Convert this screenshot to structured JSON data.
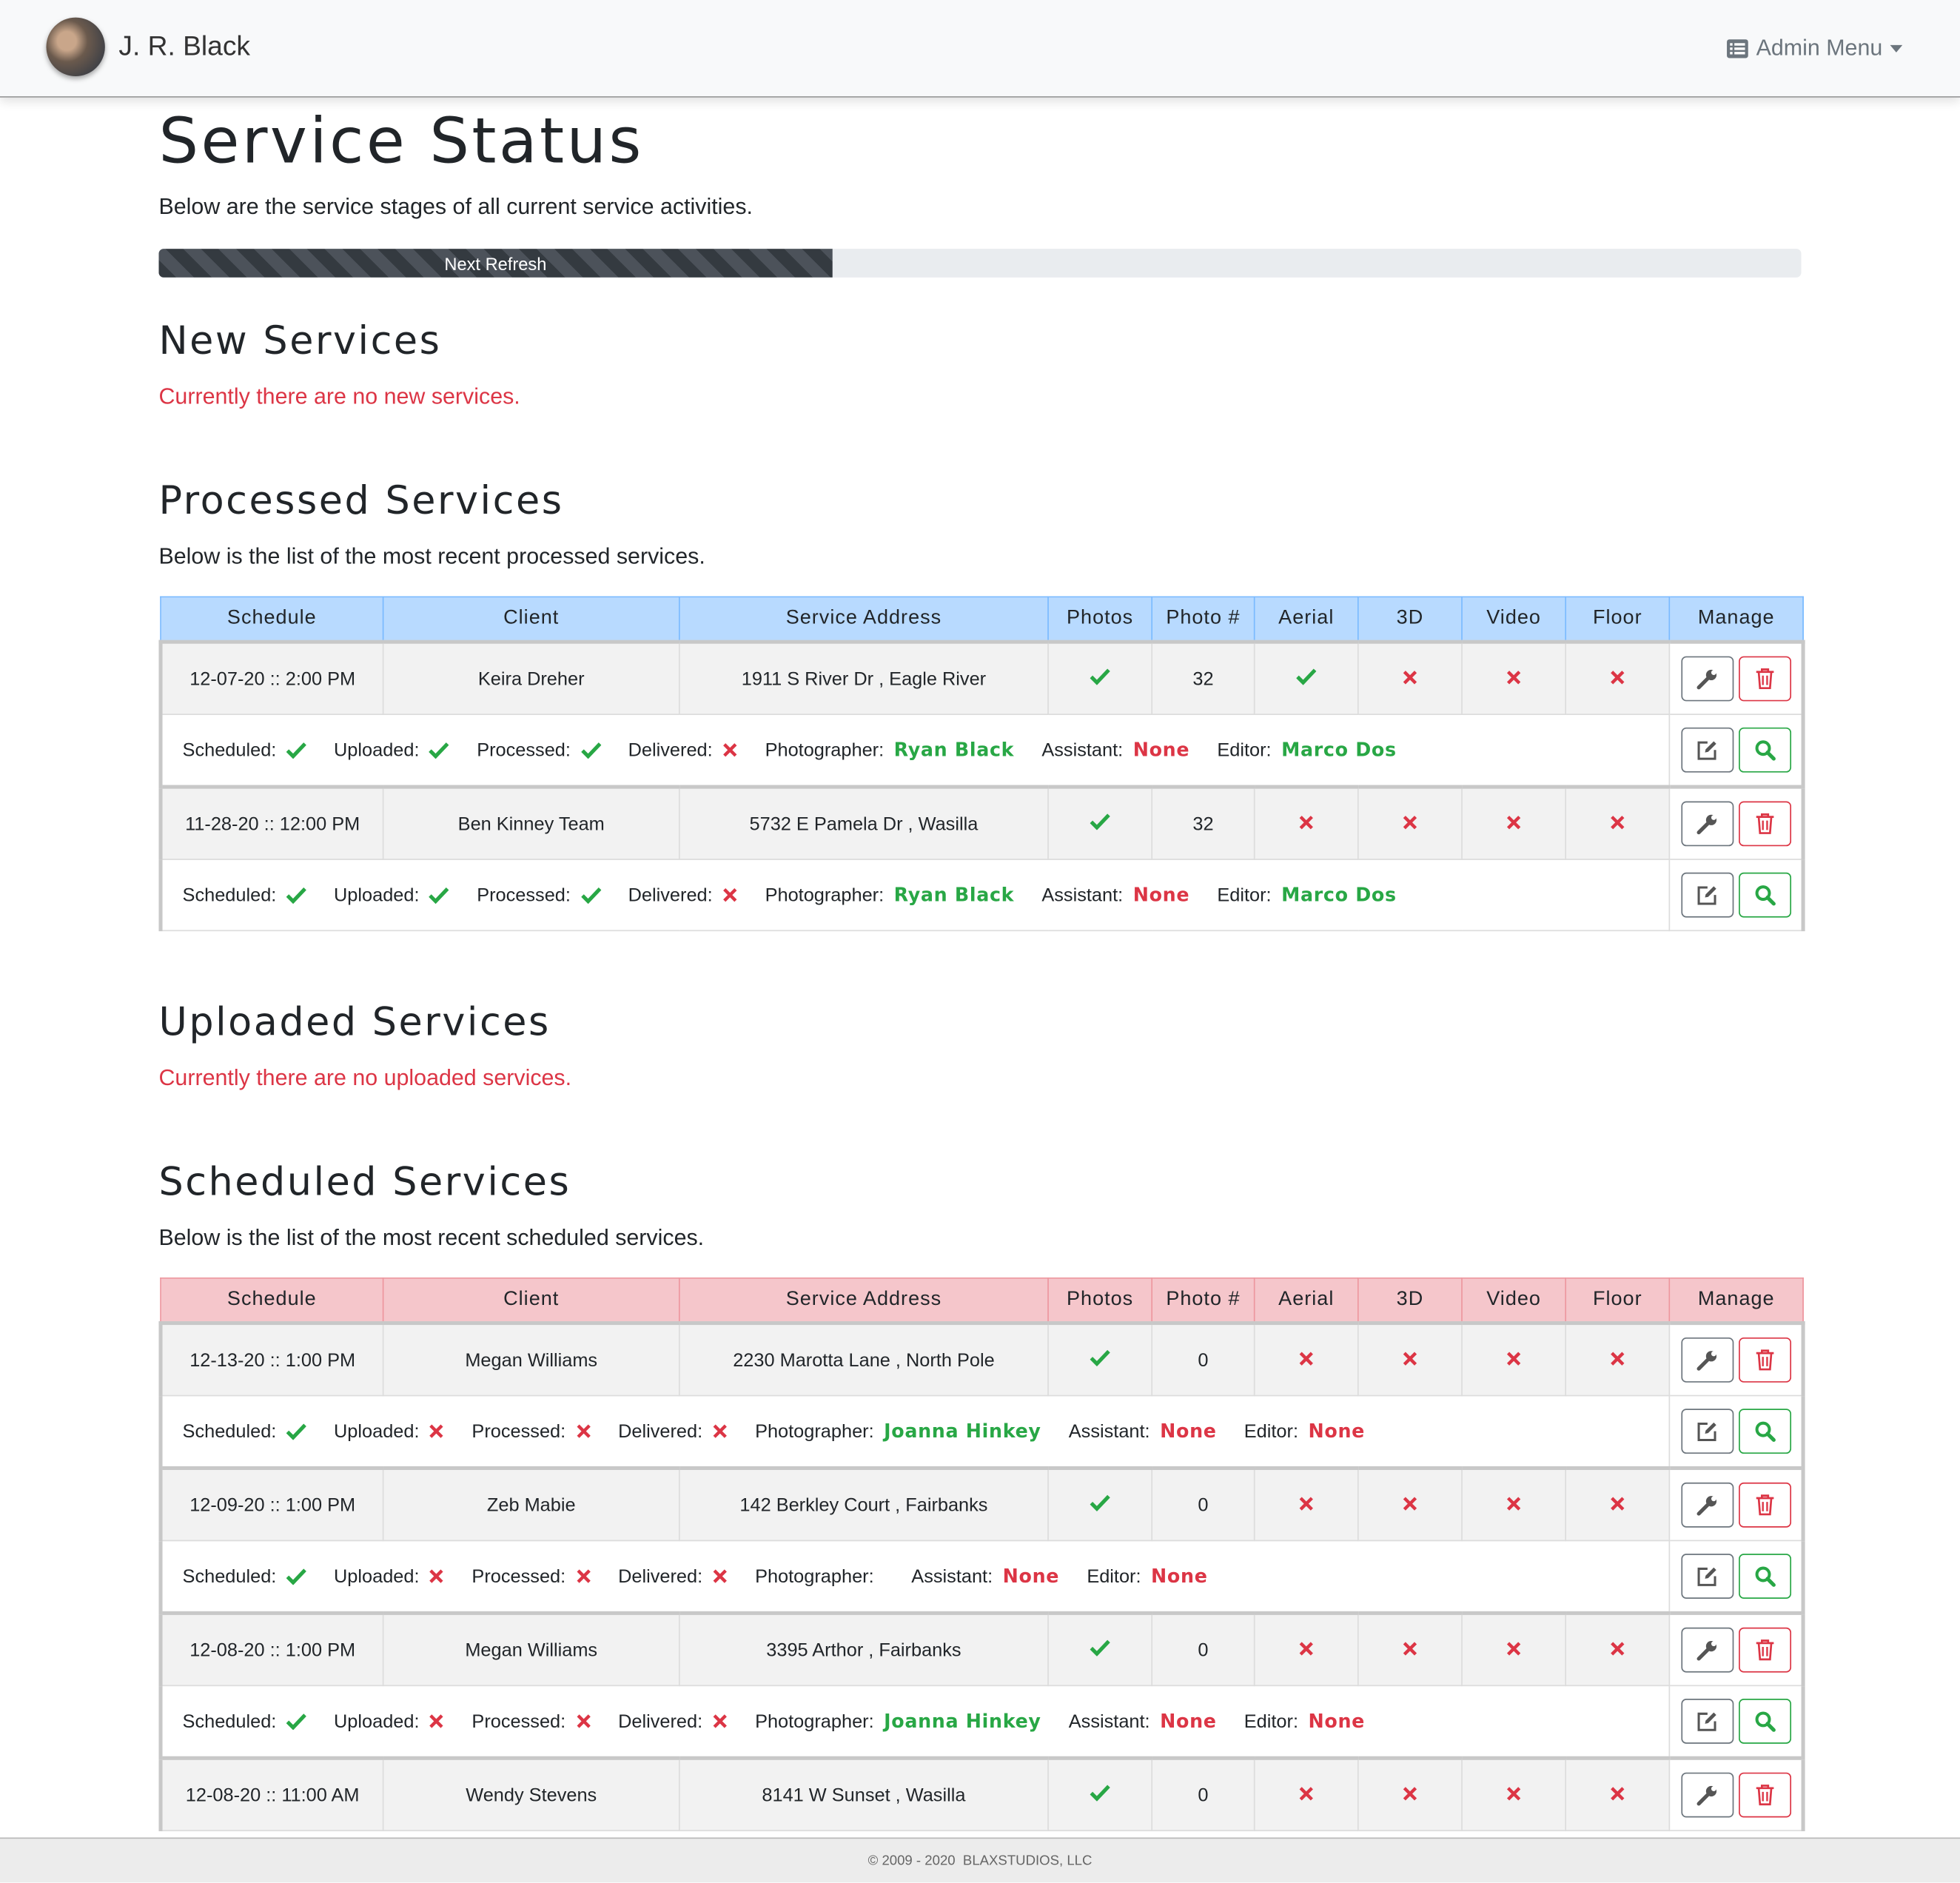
{
  "navbar": {
    "user": "J. R. Black",
    "menu": "Admin Menu"
  },
  "header": {
    "title": "Service Status",
    "subtitle": "Below are the service stages of all current service activities.",
    "refresh_label": "Next Refresh",
    "refresh_progress": 41
  },
  "detail_labels": {
    "scheduled": "Scheduled:",
    "uploaded": "Uploaded:",
    "processed": "Processed:",
    "delivered": "Delivered:",
    "photographer": "Photographer:",
    "assistant": "Assistant:",
    "editor": "Editor:"
  },
  "sections": [
    {
      "title": "New Services",
      "empty_message": "Currently there are no new services."
    },
    {
      "title": "Processed Services",
      "description": "Below is the list of the most recent processed services.",
      "table": {
        "header_color": "#b8daff",
        "border_color": "#7abaff",
        "columns": [
          "Schedule",
          "Client",
          "Service Address",
          "Photos",
          "Photo #",
          "Aerial",
          "3D",
          "Video",
          "Floor",
          "Manage"
        ],
        "rows": [
          {
            "schedule": "12-07-20 :: 2:00 PM",
            "client": "Keira Dreher",
            "address": "1911 S River Dr , Eagle River",
            "photos": true,
            "photo_count": 32,
            "aerial": true,
            "three_d": false,
            "video": false,
            "floor": false,
            "scheduled": true,
            "uploaded": true,
            "processed": true,
            "delivered": false,
            "photographer": {
              "name": "Ryan Black",
              "color": "#28a745"
            },
            "assistant": {
              "name": "None",
              "color": "#dc3545"
            },
            "editor": {
              "name": "Marco Dos",
              "color": "#28a745"
            }
          },
          {
            "schedule": "11-28-20 :: 12:00 PM",
            "client": "Ben Kinney Team",
            "address": "5732 E Pamela Dr , Wasilla",
            "photos": true,
            "photo_count": 32,
            "aerial": false,
            "three_d": false,
            "video": false,
            "floor": false,
            "scheduled": true,
            "uploaded": true,
            "processed": true,
            "delivered": false,
            "photographer": {
              "name": "Ryan Black",
              "color": "#28a745"
            },
            "assistant": {
              "name": "None",
              "color": "#dc3545"
            },
            "editor": {
              "name": "Marco Dos",
              "color": "#28a745"
            }
          }
        ]
      }
    },
    {
      "title": "Uploaded Services",
      "empty_message": "Currently there are no uploaded services."
    },
    {
      "title": "Scheduled Services",
      "description": "Below is the list of the most recent scheduled services.",
      "table": {
        "header_color": "#f5c6cb",
        "border_color": "#ed969e",
        "columns": [
          "Schedule",
          "Client",
          "Service Address",
          "Photos",
          "Photo #",
          "Aerial",
          "3D",
          "Video",
          "Floor",
          "Manage"
        ],
        "rows": [
          {
            "schedule": "12-13-20 :: 1:00 PM",
            "client": "Megan Williams",
            "address": "2230 Marotta Lane , North Pole",
            "photos": true,
            "photo_count": 0,
            "aerial": false,
            "three_d": false,
            "video": false,
            "floor": false,
            "scheduled": true,
            "uploaded": false,
            "processed": false,
            "delivered": false,
            "photographer": {
              "name": "Joanna Hinkey",
              "color": "#28a745"
            },
            "assistant": {
              "name": "None",
              "color": "#dc3545"
            },
            "editor": {
              "name": "None",
              "color": "#dc3545"
            }
          },
          {
            "schedule": "12-09-20 :: 1:00 PM",
            "client": "Zeb Mabie",
            "address": "142 Berkley Court , Fairbanks",
            "photos": true,
            "photo_count": 0,
            "aerial": false,
            "three_d": false,
            "video": false,
            "floor": false,
            "scheduled": true,
            "uploaded": false,
            "processed": false,
            "delivered": false,
            "photographer": null,
            "assistant": {
              "name": "None",
              "color": "#dc3545"
            },
            "editor": {
              "name": "None",
              "color": "#dc3545"
            }
          },
          {
            "schedule": "12-08-20 :: 1:00 PM",
            "client": "Megan Williams",
            "address": "3395 Arthor , Fairbanks",
            "photos": true,
            "photo_count": 0,
            "aerial": false,
            "three_d": false,
            "video": false,
            "floor": false,
            "scheduled": true,
            "uploaded": false,
            "processed": false,
            "delivered": false,
            "photographer": {
              "name": "Joanna Hinkey",
              "color": "#28a745"
            },
            "assistant": {
              "name": "None",
              "color": "#dc3545"
            },
            "editor": {
              "name": "None",
              "color": "#dc3545"
            }
          },
          {
            "schedule": "12-08-20 :: 11:00 AM",
            "client": "Wendy Stevens",
            "address": "8141 W Sunset , Wasilla",
            "photos": true,
            "photo_count": 0,
            "aerial": false,
            "three_d": false,
            "video": false,
            "floor": false
          }
        ]
      }
    }
  ],
  "footer": "© 2009 - 2020  BLAXSTUDIOS, LLC"
}
